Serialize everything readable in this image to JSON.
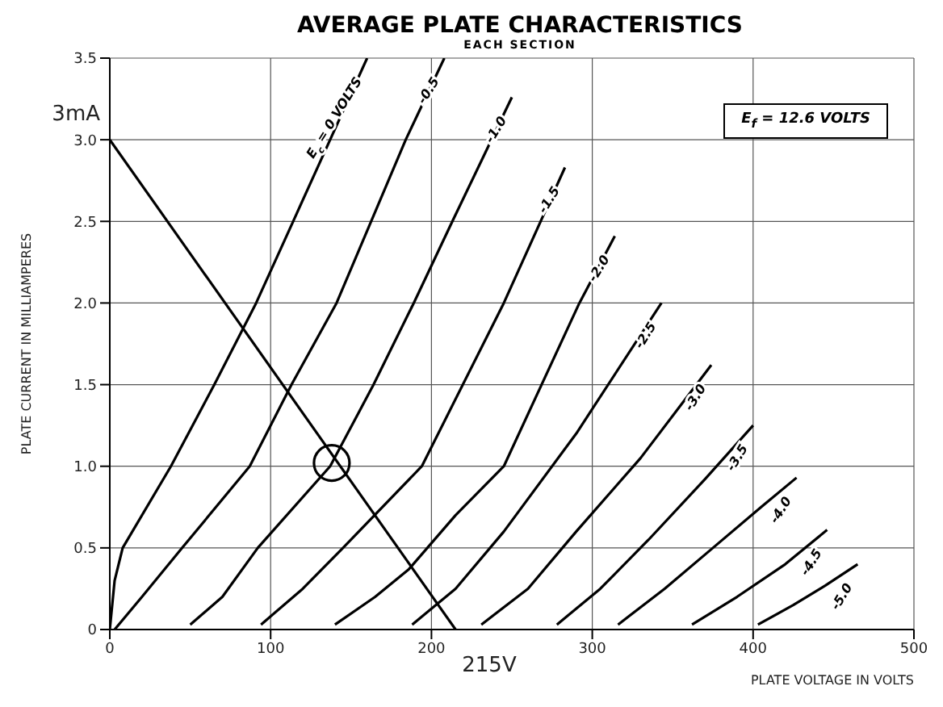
{
  "chart_data": {
    "type": "line",
    "title": "AVERAGE PLATE CHARACTERISTICS",
    "subtitle": "EACH SECTION",
    "xlabel": "PLATE VOLTAGE IN VOLTS",
    "ylabel": "PLATE CURRENT IN MILLIAMPERES",
    "xlim": [
      0,
      500
    ],
    "xticks": [
      0,
      100,
      200,
      300,
      400,
      500
    ],
    "ylim": [
      0,
      3.5
    ],
    "yticks": [
      0,
      {
        "value": 0.5,
        "label": "0.5"
      },
      {
        "value": 1,
        "label": "1.0"
      },
      {
        "value": 1.5,
        "label": "1.5"
      },
      {
        "value": 2,
        "label": "2.0"
      },
      {
        "value": 2.5,
        "label": "2.5"
      },
      {
        "value": 3,
        "label": "3.0"
      },
      {
        "value": 3.5,
        "label": "3.5"
      }
    ],
    "grid": true,
    "marker": "none",
    "line_style": "solid",
    "annotations": [
      {
        "text": "3mA",
        "x": 0,
        "y": 3
      },
      {
        "text": "215V",
        "x": 215,
        "y": 0
      },
      "E$_{f}$ = 12.6 VOLTS"
    ],
    "series": [
      {
        "name": "E$_{c}$ = 0 VOLTS",
        "color": "#000000",
        "x": [
          0,
          3,
          8,
          38,
          65,
          91,
          114,
          137,
          160
        ],
        "values": [
          0,
          0.3,
          0.5,
          1.0,
          1.5,
          2.0,
          2.5,
          3.0,
          3.5
        ]
      },
      {
        "name": "-0.5",
        "color": "#000000",
        "x": [
          3,
          20,
          45,
          87,
          113,
          141,
          184,
          208
        ],
        "values": [
          0,
          0.2,
          0.5,
          1.0,
          1.5,
          2.0,
          3.0,
          3.5
        ]
      },
      {
        "name": "-1.0",
        "color": "#000000",
        "x": [
          50,
          70,
          92,
          137,
          164,
          189,
          213,
          250
        ],
        "values": [
          0.03,
          0.2,
          0.5,
          1.0,
          1.5,
          2.0,
          2.5,
          3.26
        ]
      },
      {
        "name": "-1.5",
        "color": "#000000",
        "x": [
          94,
          120,
          145,
          194,
          245,
          283
        ],
        "values": [
          0.03,
          0.25,
          0.5,
          1.0,
          2.0,
          2.83
        ]
      },
      {
        "name": "-2.0",
        "color": "#000000",
        "x": [
          140,
          165,
          186,
          215,
          245,
          292,
          314
        ],
        "values": [
          0.03,
          0.2,
          0.37,
          0.7,
          1.0,
          2.0,
          2.41
        ]
      },
      {
        "name": "-2.5",
        "color": "#000000",
        "x": [
          188,
          215,
          245,
          290,
          343
        ],
        "values": [
          0.03,
          0.25,
          0.6,
          1.2,
          2.0
        ]
      },
      {
        "name": "-3.0",
        "color": "#000000",
        "x": [
          231,
          260,
          290,
          330,
          374
        ],
        "values": [
          0.03,
          0.25,
          0.6,
          1.05,
          1.62
        ]
      },
      {
        "name": "-3.5",
        "color": "#000000",
        "x": [
          278,
          305,
          335,
          370,
          400
        ],
        "values": [
          0.03,
          0.25,
          0.55,
          0.92,
          1.25
        ]
      },
      {
        "name": "-4.0",
        "color": "#000000",
        "x": [
          316,
          345,
          375,
          405,
          427
        ],
        "values": [
          0.03,
          0.25,
          0.5,
          0.75,
          0.93
        ]
      },
      {
        "name": "-4.5",
        "color": "#000000",
        "x": [
          362,
          390,
          420,
          446
        ],
        "values": [
          0.03,
          0.2,
          0.4,
          0.61
        ]
      },
      {
        "name": "-5.0",
        "color": "#000000",
        "x": [
          403,
          425,
          445,
          465
        ],
        "values": [
          0.03,
          0.15,
          0.27,
          0.4
        ]
      },
      {
        "color": "#000000",
        "x": [
          0,
          215
        ],
        "values": [
          3,
          0
        ]
      },
      {
        "type": "scatter",
        "marker": "circle",
        "color": "#000000",
        "x": [
          138
        ],
        "values": [
          1.02
        ]
      }
    ]
  }
}
